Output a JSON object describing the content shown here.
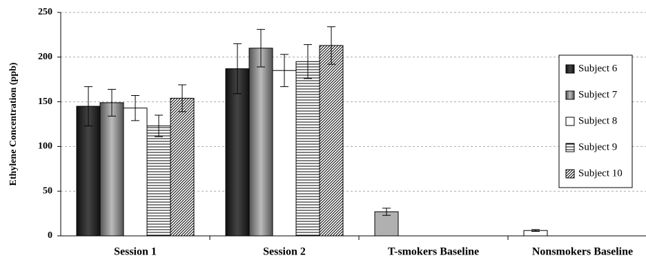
{
  "chart_data": {
    "type": "bar",
    "y_label": "Ethylene Concentration (ppb)",
    "categories": [
      "Session 1",
      "Session 2",
      "T-smokers Baseline",
      "Nonsmokers Baseline"
    ],
    "series": [
      {
        "name": "Subject 6",
        "color": "#2a2a2a",
        "fill": "dark",
        "values": [
          145,
          187,
          null,
          null
        ],
        "errors": [
          22,
          28,
          null,
          null
        ]
      },
      {
        "name": "Subject 7",
        "color": "#888888",
        "fill": "gray",
        "values": [
          149,
          210,
          null,
          null
        ],
        "errors": [
          15,
          21,
          null,
          null
        ]
      },
      {
        "name": "Subject 8",
        "color": "#ffffff",
        "fill": "white",
        "values": [
          143,
          185,
          null,
          null
        ],
        "errors": [
          14,
          18,
          null,
          null
        ]
      },
      {
        "name": "Subject 9",
        "color": "#000000",
        "fill": "horizontal",
        "values": [
          123,
          195,
          null,
          null
        ],
        "errors": [
          12,
          19,
          null,
          null
        ]
      },
      {
        "name": "Subject 10",
        "color": "#000000",
        "fill": "diagonal",
        "values": [
          154,
          213,
          null,
          null
        ],
        "errors": [
          15,
          21,
          null,
          null
        ]
      }
    ],
    "baseline": {
      "values": [
        null,
        null,
        27,
        6
      ],
      "errors": [
        null,
        null,
        4,
        1
      ],
      "colors": [
        null,
        null,
        "#b0b0b0",
        "#ffffff"
      ]
    },
    "ylim": [
      0,
      250
    ],
    "yticks": [
      0,
      50,
      100,
      150,
      200,
      250
    ],
    "grid": true,
    "legend": "right"
  }
}
